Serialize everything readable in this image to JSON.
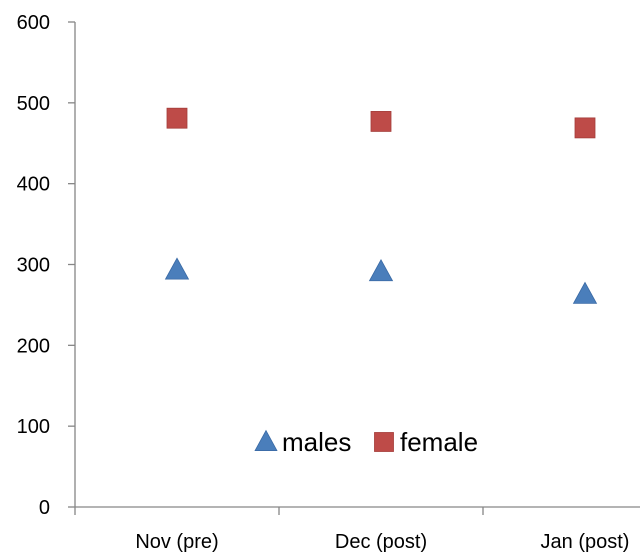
{
  "chart_data": {
    "type": "scatter",
    "categories": [
      "Nov (pre)",
      "Dec (post)",
      "Jan (post)"
    ],
    "series": [
      {
        "name": "males",
        "values": [
          293,
          291,
          263
        ],
        "color": "#4a7ebb",
        "marker": "triangle"
      },
      {
        "name": "female",
        "values": [
          481,
          477,
          469
        ],
        "color": "#be4b48",
        "marker": "square"
      }
    ],
    "ylim": [
      0,
      600
    ],
    "yticks": [
      0,
      100,
      200,
      300,
      400,
      500,
      600
    ],
    "grid": false,
    "legend_position": "bottom-center-inside"
  }
}
